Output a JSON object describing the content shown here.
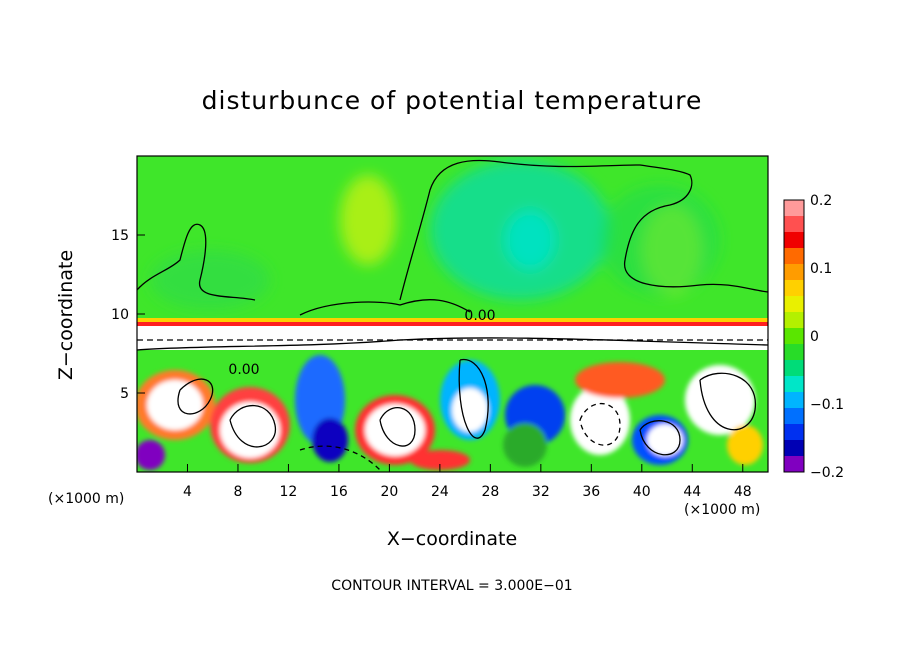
{
  "chart_data": {
    "type": "heatmap",
    "title": "disturbunce of potential temperature",
    "xlabel": "X−coordinate",
    "ylabel": "Z−coordinate",
    "x_unit_left": "(×1000 m)",
    "x_unit_right": "(×1000 m)",
    "x_ticks": [
      4,
      8,
      12,
      16,
      20,
      24,
      28,
      32,
      36,
      40,
      44,
      48
    ],
    "y_ticks": [
      5,
      10,
      15
    ],
    "xlim": [
      0,
      50
    ],
    "ylim": [
      0,
      20
    ],
    "colorbar": {
      "ticks": [
        "0.2",
        "0.1",
        "0",
        "−0.1",
        "−0.2"
      ],
      "range": [
        -0.2,
        0.2
      ],
      "colors": [
        "#ff9a9a",
        "#ff5050",
        "#f00000",
        "#ff6a00",
        "#ff9c00",
        "#ffd000",
        "#e9f000",
        "#b4f000",
        "#5ae600",
        "#28dc28",
        "#00dc78",
        "#00e6c8",
        "#00b4ff",
        "#0070ff",
        "#0030f0",
        "#0000b4",
        "#8000c0"
      ]
    },
    "contour_label": "0.00",
    "contour_label_lower": "0.00",
    "contour_note": "CONTOUR INTERVAL = 3.000E−01",
    "grid": false
  }
}
